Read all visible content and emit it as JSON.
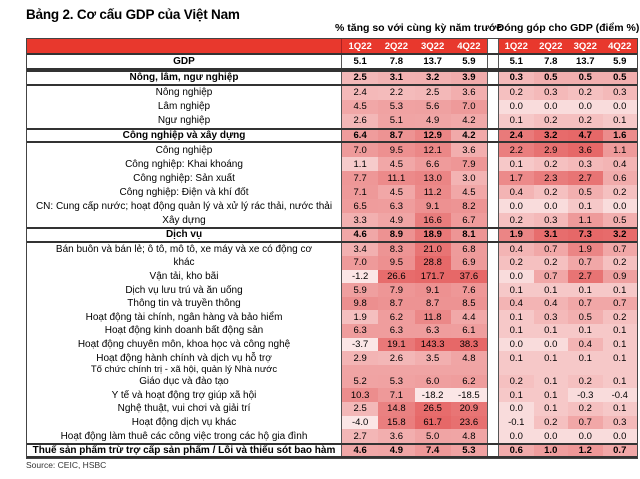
{
  "title": "Bảng 2. Cơ cấu GDP của Việt Nam",
  "left_header": "% tăng so với cùng kỳ năm trước",
  "right_header": "Đóng góp cho GDP (điểm %)",
  "quarters": [
    "1Q22",
    "2Q22",
    "3Q22",
    "4Q22"
  ],
  "rows": [
    {
      "label": "GDP",
      "bold": true,
      "plain": true,
      "g": [
        "5.1",
        "7.8",
        "13.7",
        "5.9"
      ],
      "c": [
        "5.1",
        "7.8",
        "13.7",
        "5.9"
      ]
    },
    {
      "label": "Nông, lâm, ngư nghiệp",
      "bold": true,
      "g": [
        "2.5",
        "3.1",
        "3.2",
        "3.9"
      ],
      "c": [
        "0.3",
        "0.5",
        "0.5",
        "0.5"
      ]
    },
    {
      "label": "Nông nghiệp",
      "g": [
        "2.4",
        "2.2",
        "2.5",
        "3.6"
      ],
      "c": [
        "0.2",
        "0.3",
        "0.2",
        "0.3"
      ]
    },
    {
      "label": "Lâm nghiệp",
      "g": [
        "4.5",
        "5.3",
        "5.6",
        "7.0"
      ],
      "c": [
        "0.0",
        "0.0",
        "0.0",
        "0.0"
      ]
    },
    {
      "label": "Ngư nghiệp",
      "g": [
        "2.6",
        "5.1",
        "4.9",
        "4.2"
      ],
      "c": [
        "0.1",
        "0.2",
        "0.2",
        "0.1"
      ]
    },
    {
      "label": "Công nghiệp và xây dựng",
      "bold": true,
      "g": [
        "6.4",
        "8.7",
        "12.9",
        "4.2"
      ],
      "c": [
        "2.4",
        "3.2",
        "4.7",
        "1.6"
      ]
    },
    {
      "label": "Công nghiệp",
      "g": [
        "7.0",
        "9.5",
        "12.1",
        "3.6"
      ],
      "c": [
        "2.2",
        "2.9",
        "3.6",
        "1.1"
      ]
    },
    {
      "label": "Công nghiệp: Khai khoáng",
      "g": [
        "1.1",
        "4.5",
        "6.6",
        "7.9"
      ],
      "c": [
        "0.1",
        "0.2",
        "0.3",
        "0.4"
      ]
    },
    {
      "label": "Công nghiệp: Sản xuất",
      "g": [
        "7.7",
        "11.1",
        "13.0",
        "3.0"
      ],
      "c": [
        "1.7",
        "2.3",
        "2.7",
        "0.6"
      ]
    },
    {
      "label": "Công nghiệp: Điện và khí đốt",
      "g": [
        "7.1",
        "4.5",
        "11.2",
        "4.5"
      ],
      "c": [
        "0.4",
        "0.2",
        "0.5",
        "0.2"
      ]
    },
    {
      "label": "CN: Cung cấp nước; hoạt động quản lý và xử lý rác thải, nước thải",
      "g": [
        "6.5",
        "6.3",
        "9.1",
        "8.2"
      ],
      "c": [
        "0.0",
        "0.0",
        "0.1",
        "0.0"
      ]
    },
    {
      "label": "Xây dựng",
      "g": [
        "3.3",
        "4.9",
        "16.6",
        "6.7"
      ],
      "c": [
        "0.2",
        "0.3",
        "1.1",
        "0.5"
      ]
    },
    {
      "label": "Dịch vụ",
      "bold": true,
      "g": [
        "4.6",
        "8.9",
        "18.9",
        "8.1"
      ],
      "c": [
        "1.9",
        "3.1",
        "7.3",
        "3.2"
      ]
    },
    {
      "label": "Bán buôn và bán lẻ; ô tô, mô tô, xe máy và xe có động cơ",
      "svc": true,
      "g": [
        "3.4",
        "8.3",
        "21.0",
        "6.8"
      ],
      "c": [
        "0.4",
        "0.7",
        "1.9",
        "0.7"
      ]
    },
    {
      "label": "khác",
      "svc": true,
      "g": [
        "7.0",
        "9.5",
        "28.8",
        "6.9"
      ],
      "c": [
        "0.2",
        "0.2",
        "0.7",
        "0.2"
      ]
    },
    {
      "label": "Vận tải, kho bãi",
      "svc": true,
      "g": [
        "-1.2",
        "26.6",
        "171.7",
        "37.6"
      ],
      "c": [
        "0.0",
        "0.7",
        "2.7",
        "0.9"
      ]
    },
    {
      "label": "Dịch vụ lưu trú và ăn uống",
      "svc": true,
      "g": [
        "5.9",
        "7.9",
        "9.1",
        "7.6"
      ],
      "c": [
        "0.1",
        "0.1",
        "0.1",
        "0.1"
      ]
    },
    {
      "label": "Thông tin và truyền thông",
      "svc": true,
      "g": [
        "9.8",
        "8.7",
        "8.7",
        "8.5"
      ],
      "c": [
        "0.4",
        "0.4",
        "0.7",
        "0.7"
      ]
    },
    {
      "label": "Hoạt động tài chính, ngân hàng và bảo hiểm",
      "svc": true,
      "g": [
        "1.9",
        "6.2",
        "11.8",
        "4.4"
      ],
      "c": [
        "0.1",
        "0.3",
        "0.5",
        "0.2"
      ]
    },
    {
      "label": "Hoạt động kinh doanh bất động sản",
      "svc": true,
      "g": [
        "6.3",
        "6.3",
        "6.3",
        "6.1"
      ],
      "c": [
        "0.1",
        "0.1",
        "0.1",
        "0.1"
      ]
    },
    {
      "label": "Hoạt động chuyên môn, khoa học và công nghệ",
      "svc": true,
      "g": [
        "-3.7",
        "19.1",
        "143.3",
        "38.3"
      ],
      "c": [
        "0.0",
        "0.0",
        "0.4",
        "0.1"
      ]
    },
    {
      "label": "Hoạt động hành chính và dịch vụ hỗ trợ",
      "svc": true,
      "g": [
        "2.9",
        "2.6",
        "3.5",
        "4.8"
      ],
      "c": [
        "0.1",
        "0.1",
        "0.1",
        "0.1"
      ]
    },
    {
      "label": "Tổ chức chính trị - xã hội, quản lý Nhà nước",
      "svc": true,
      "thin": true
    },
    {
      "label": "Giáo dục và đào tạo",
      "svc": true,
      "g": [
        "5.2",
        "5.3",
        "6.0",
        "6.2"
      ],
      "c": [
        "0.2",
        "0.1",
        "0.2",
        "0.1"
      ]
    },
    {
      "label": "Y tế và hoạt động trợ giúp xã hội",
      "svc": true,
      "g": [
        "10.3",
        "7.1",
        "-18.2",
        "-18.5"
      ],
      "c": [
        "0.1",
        "0.1",
        "-0.3",
        "-0.4"
      ]
    },
    {
      "label": "Nghệ thuật, vui chơi và giải trí",
      "svc": true,
      "g": [
        "2.5",
        "14.8",
        "26.5",
        "20.9"
      ],
      "c": [
        "0.0",
        "0.1",
        "0.2",
        "0.1"
      ]
    },
    {
      "label": "Hoạt động dịch vụ khác",
      "svc": true,
      "g": [
        "-4.0",
        "15.8",
        "61.7",
        "23.6"
      ],
      "c": [
        "-0.1",
        "0.2",
        "0.7",
        "0.3"
      ]
    },
    {
      "label": "Hoạt động làm thuê các công việc trong các hộ gia đình",
      "svc": true,
      "g": [
        "2.7",
        "3.6",
        "5.0",
        "4.8"
      ],
      "c": [
        "0.0",
        "0.0",
        "0.0",
        "0.0"
      ]
    },
    {
      "label": "Thuế sản phẩm trừ trợ cấp sản phẩm / Lỗi và thiếu sót bao hàm",
      "bold": true,
      "g": [
        "4.6",
        "4.9",
        "7.4",
        "5.3"
      ],
      "c": [
        "0.6",
        "1.0",
        "1.2",
        "0.7"
      ]
    }
  ],
  "source": "Source: CEIC, HSBC",
  "colors": {
    "header": "#e8382d",
    "heat_light": "#fbe6e6",
    "heat_dark": "#e86a6a"
  }
}
